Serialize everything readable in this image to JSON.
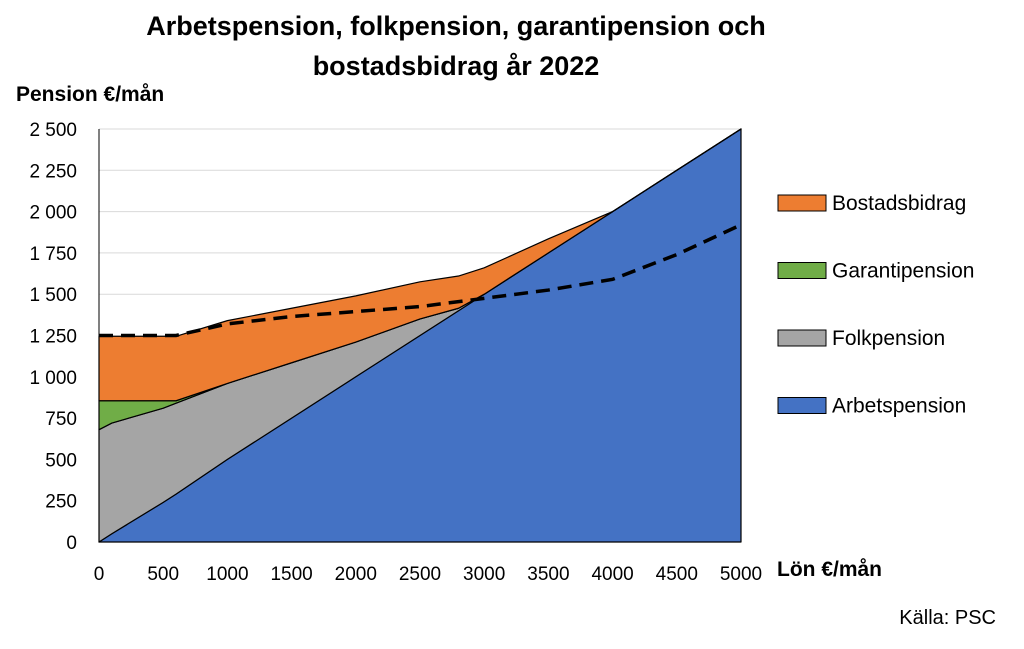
{
  "chart_data": {
    "type": "area",
    "stacked": true,
    "title_lines": [
      "Arbetspension, folkpension, garantipension och",
      "bostadsbidrag år 2022"
    ],
    "xlabel": "Lön €/mån",
    "ylabel": "Pension €/mån",
    "xlim": [
      0,
      5000
    ],
    "ylim": [
      0,
      2500
    ],
    "x_ticks": [
      "0",
      "500",
      "1000",
      "1500",
      "2000",
      "2500",
      "3000",
      "3500",
      "4000",
      "4500",
      "5000"
    ],
    "y_ticks": [
      "0",
      "250",
      "500",
      "750",
      "1 000",
      "1 250",
      "1 500",
      "1 750",
      "2 000",
      "2 250",
      "2 500"
    ],
    "x": [
      0,
      100,
      500,
      600,
      1000,
      1500,
      2000,
      2500,
      2800,
      3000,
      3500,
      4000,
      4500,
      5000
    ],
    "series": [
      {
        "name": "Arbetspension",
        "color": "#4472C4",
        "values": [
          0,
          50,
          240,
          290,
          500,
          750,
          1000,
          1250,
          1400,
          1500,
          1750,
          2000,
          2250,
          2500
        ]
      },
      {
        "name": "Folkpension",
        "color": "#A5A5A5",
        "values": [
          680,
          670,
          570,
          550,
          460,
          335,
          210,
          100,
          15,
          0,
          0,
          0,
          0,
          0
        ]
      },
      {
        "name": "Garantipension",
        "color": "#70AD47",
        "values": [
          175,
          135,
          45,
          15,
          0,
          0,
          0,
          0,
          0,
          0,
          0,
          0,
          0,
          0
        ]
      },
      {
        "name": "Bostadsbidrag",
        "color": "#ED7D31",
        "values": [
          390,
          390,
          390,
          390,
          380,
          330,
          280,
          225,
          195,
          160,
          85,
          0,
          0,
          0
        ]
      }
    ],
    "reference_line": {
      "style": "dashed",
      "color": "#000000",
      "x": [
        0,
        600,
        1000,
        1500,
        2000,
        2500,
        3000,
        3500,
        4000,
        4500,
        5000
      ],
      "values": [
        1250,
        1250,
        1320,
        1365,
        1395,
        1425,
        1475,
        1525,
        1590,
        1740,
        1920
      ]
    },
    "legend_position": "right",
    "legend_order": [
      "Bostadsbidrag",
      "Garantipension",
      "Folkpension",
      "Arbetspension"
    ],
    "grid": "horizontal",
    "source": "Källa: PSC"
  }
}
